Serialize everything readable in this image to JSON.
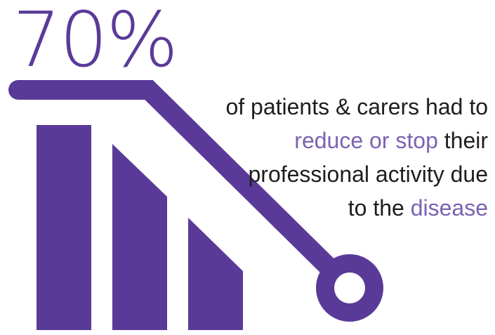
{
  "stat": {
    "value": "70%"
  },
  "caption": {
    "line1": "of patients & carers had to",
    "line2_highlight": "reduce or stop",
    "line2_rest": " their",
    "line3": "professional activity due",
    "line4_prefix": "to the ",
    "line4_highlight": "disease"
  },
  "colors": {
    "primary": "#5a3a98",
    "highlight_text": "#7b63b2",
    "body_text": "#1e1e1e",
    "background": "#ffffff"
  },
  "icons": [
    "bar-chart-graphic",
    "trend-line-graphic",
    "ring-end-graphic"
  ]
}
